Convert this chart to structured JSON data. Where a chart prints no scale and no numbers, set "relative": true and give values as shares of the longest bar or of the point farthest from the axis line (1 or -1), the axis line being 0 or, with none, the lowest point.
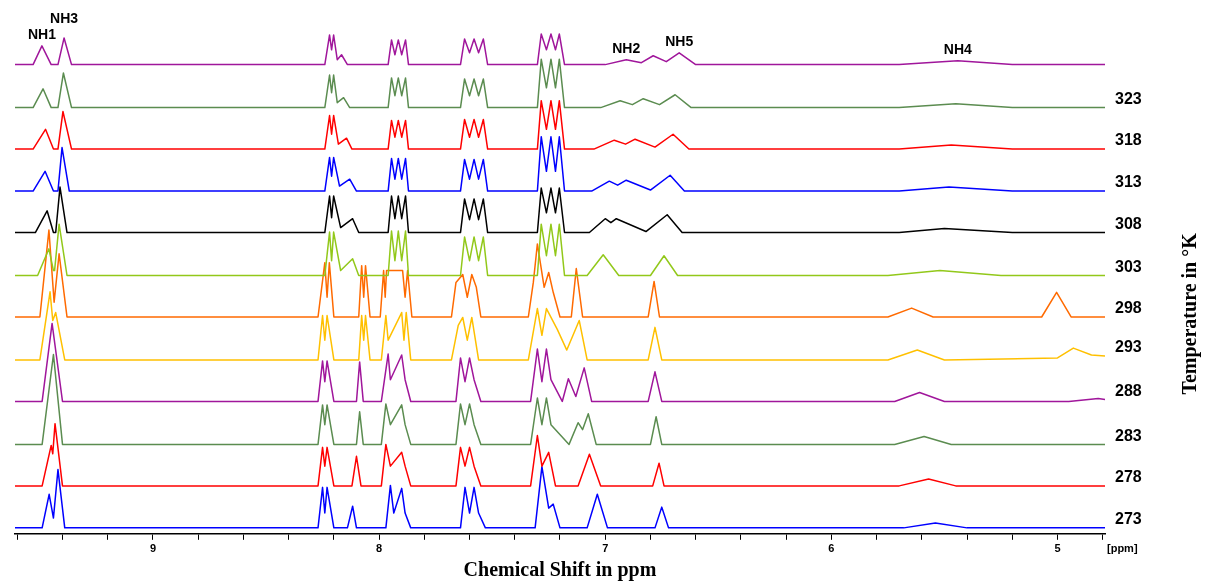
{
  "chart_data": {
    "type": "line",
    "relative": true,
    "marker": "none",
    "xlabel": "Chemical Shift in ppm",
    "ylabel": "Temperature in °K",
    "xlim": [
      9.61,
      4.79
    ],
    "xticks": [
      {
        "value": 9.6,
        "label": null
      },
      {
        "value": 9.4,
        "label": null
      },
      {
        "value": 9.2,
        "label": null
      },
      9,
      {
        "value": 8.8,
        "label": null
      },
      {
        "value": 8.6,
        "label": null
      },
      {
        "value": 8.4,
        "label": null
      },
      {
        "value": 8.2,
        "label": null
      },
      8,
      {
        "value": 7.8,
        "label": null
      },
      {
        "value": 7.6,
        "label": null
      },
      {
        "value": 7.4,
        "label": null
      },
      {
        "value": 7.2,
        "label": null
      },
      7,
      {
        "value": 6.8,
        "label": null
      },
      {
        "value": 6.6,
        "label": null
      },
      {
        "value": 6.4,
        "label": null
      },
      {
        "value": 6.2,
        "label": null
      },
      6,
      {
        "value": 5.8,
        "label": null
      },
      {
        "value": 5.6,
        "label": null
      },
      {
        "value": 5.4,
        "label": null
      },
      {
        "value": 5.2,
        "label": null
      },
      5,
      {
        "value": 4.8,
        "label": null
      }
    ],
    "annotations": [
      {
        "text": "NH1",
        "x": 9.491,
        "y": 0.976
      },
      {
        "text": "NH3",
        "x": 9.393,
        "y": 0.992
      },
      {
        "text": "NH2",
        "x": 6.907,
        "y": 0.948
      },
      {
        "text": "NH5",
        "x": 6.673,
        "y": 0.962
      },
      {
        "text": "NH4",
        "x": 5.441,
        "y": 0.946
      },
      "[ppm]"
    ],
    "series": [
      {
        "color": "#a0169b",
        "x": [
          9.61,
          9.53,
          9.491,
          9.45,
          9.42,
          9.393,
          9.36,
          8.24,
          8.219,
          8.21,
          8.201,
          8.185,
          8.166,
          8.14,
          7.96,
          7.945,
          7.93,
          7.915,
          7.9,
          7.883,
          7.87,
          7.64,
          7.622,
          7.6,
          7.58,
          7.56,
          7.539,
          7.52,
          7.3,
          7.283,
          7.26,
          7.24,
          7.22,
          7.203,
          7.18,
          7.0,
          6.907,
          6.84,
          6.788,
          6.73,
          6.673,
          6.6,
          5.7,
          5.441,
          5.2,
          4.79
        ],
        "values": [
          0.938,
          0.938,
          0.976,
          0.938,
          0.938,
          0.992,
          0.938,
          0.938,
          0.998,
          0.968,
          0.998,
          0.948,
          0.958,
          0.938,
          0.938,
          0.988,
          0.958,
          0.988,
          0.958,
          0.988,
          0.938,
          0.938,
          0.99,
          0.962,
          0.99,
          0.962,
          0.99,
          0.938,
          0.938,
          1.0,
          0.968,
          1.0,
          0.968,
          1.0,
          0.938,
          0.938,
          0.948,
          0.942,
          0.956,
          0.944,
          0.962,
          0.938,
          0.938,
          0.946,
          0.938,
          0.938
        ]
      },
      {
        "name": "323",
        "color": "#5b8c50",
        "x": [
          9.61,
          9.53,
          9.486,
          9.45,
          9.42,
          9.396,
          9.36,
          8.24,
          8.219,
          8.21,
          8.201,
          8.185,
          8.157,
          8.13,
          7.96,
          7.945,
          7.93,
          7.915,
          7.9,
          7.883,
          7.87,
          7.64,
          7.622,
          7.6,
          7.58,
          7.56,
          7.539,
          7.52,
          7.3,
          7.283,
          7.26,
          7.24,
          7.22,
          7.203,
          7.18,
          7.02,
          6.934,
          6.88,
          6.832,
          6.76,
          6.691,
          6.62,
          5.7,
          5.45,
          5.2,
          4.79
        ],
        "values": [
          0.851,
          0.851,
          0.889,
          0.851,
          0.851,
          0.921,
          0.851,
          0.851,
          0.917,
          0.881,
          0.917,
          0.861,
          0.871,
          0.851,
          0.851,
          0.911,
          0.875,
          0.911,
          0.875,
          0.911,
          0.851,
          0.851,
          0.909,
          0.875,
          0.909,
          0.875,
          0.909,
          0.851,
          0.851,
          0.949,
          0.891,
          0.949,
          0.891,
          0.949,
          0.851,
          0.851,
          0.865,
          0.857,
          0.869,
          0.857,
          0.877,
          0.851,
          0.851,
          0.859,
          0.851,
          0.851
        ]
      },
      {
        "name": "318",
        "color": "#ff0000",
        "x": [
          9.61,
          9.53,
          9.475,
          9.44,
          9.42,
          9.398,
          9.36,
          8.24,
          8.219,
          8.21,
          8.201,
          8.18,
          8.144,
          8.12,
          7.96,
          7.945,
          7.93,
          7.915,
          7.9,
          7.883,
          7.87,
          7.64,
          7.622,
          7.6,
          7.58,
          7.56,
          7.539,
          7.52,
          7.3,
          7.283,
          7.26,
          7.24,
          7.22,
          7.203,
          7.18,
          7.05,
          6.96,
          6.91,
          6.868,
          6.78,
          6.7,
          6.63,
          5.7,
          5.47,
          5.2,
          4.79
        ],
        "values": [
          0.767,
          0.767,
          0.807,
          0.767,
          0.767,
          0.843,
          0.767,
          0.767,
          0.835,
          0.797,
          0.835,
          0.777,
          0.789,
          0.767,
          0.767,
          0.825,
          0.791,
          0.825,
          0.791,
          0.825,
          0.767,
          0.767,
          0.827,
          0.791,
          0.827,
          0.791,
          0.827,
          0.767,
          0.767,
          0.865,
          0.807,
          0.865,
          0.807,
          0.865,
          0.767,
          0.767,
          0.785,
          0.777,
          0.787,
          0.771,
          0.797,
          0.767,
          0.767,
          0.775,
          0.767,
          0.767
        ]
      },
      {
        "name": "313",
        "color": "#0000ff",
        "x": [
          9.61,
          9.53,
          9.477,
          9.44,
          9.42,
          9.402,
          9.37,
          8.24,
          8.219,
          8.21,
          8.201,
          8.175,
          8.13,
          8.1,
          7.96,
          7.945,
          7.93,
          7.915,
          7.9,
          7.883,
          7.87,
          7.64,
          7.622,
          7.6,
          7.58,
          7.56,
          7.539,
          7.52,
          7.3,
          7.283,
          7.26,
          7.24,
          7.22,
          7.203,
          7.18,
          7.06,
          6.982,
          6.945,
          6.907,
          6.8,
          6.713,
          6.65,
          5.7,
          5.48,
          5.2,
          4.79
        ],
        "values": [
          0.682,
          0.682,
          0.722,
          0.682,
          0.682,
          0.77,
          0.682,
          0.682,
          0.75,
          0.712,
          0.75,
          0.692,
          0.706,
          0.682,
          0.682,
          0.748,
          0.706,
          0.748,
          0.706,
          0.748,
          0.682,
          0.682,
          0.746,
          0.706,
          0.746,
          0.706,
          0.746,
          0.682,
          0.682,
          0.792,
          0.722,
          0.792,
          0.722,
          0.792,
          0.682,
          0.682,
          0.702,
          0.694,
          0.704,
          0.684,
          0.714,
          0.682,
          0.682,
          0.69,
          0.682,
          0.682
        ]
      },
      {
        "name": "308",
        "color": "#000000",
        "x": [
          9.61,
          9.52,
          9.468,
          9.44,
          9.43,
          9.411,
          9.38,
          8.24,
          8.219,
          8.21,
          8.201,
          8.17,
          8.117,
          8.09,
          7.96,
          7.945,
          7.93,
          7.915,
          7.9,
          7.883,
          7.87,
          7.64,
          7.622,
          7.6,
          7.58,
          7.56,
          7.539,
          7.52,
          7.3,
          7.283,
          7.26,
          7.24,
          7.22,
          7.203,
          7.18,
          7.07,
          7.0,
          6.975,
          6.951,
          6.82,
          6.726,
          6.66,
          5.7,
          5.5,
          5.2,
          4.79
        ],
        "values": [
          0.598,
          0.598,
          0.642,
          0.598,
          0.598,
          0.69,
          0.598,
          0.598,
          0.672,
          0.628,
          0.672,
          0.608,
          0.626,
          0.598,
          0.598,
          0.672,
          0.626,
          0.672,
          0.626,
          0.672,
          0.598,
          0.598,
          0.666,
          0.624,
          0.666,
          0.624,
          0.666,
          0.598,
          0.598,
          0.688,
          0.638,
          0.688,
          0.638,
          0.688,
          0.598,
          0.598,
          0.626,
          0.618,
          0.626,
          0.6,
          0.634,
          0.598,
          0.598,
          0.606,
          0.598,
          0.598
        ]
      },
      {
        "name": "303",
        "color": "#92c81a",
        "x": [
          9.61,
          9.51,
          9.46,
          9.44,
          9.435,
          9.415,
          9.38,
          8.24,
          8.219,
          8.21,
          8.201,
          8.17,
          8.117,
          8.09,
          7.96,
          7.945,
          7.93,
          7.915,
          7.9,
          7.883,
          7.87,
          7.64,
          7.622,
          7.6,
          7.58,
          7.56,
          7.539,
          7.52,
          7.3,
          7.283,
          7.26,
          7.24,
          7.22,
          7.203,
          7.18,
          7.08,
          7.009,
          6.94,
          6.8,
          6.74,
          6.68,
          5.75,
          5.52,
          5.25,
          4.79
        ],
        "values": [
          0.511,
          0.511,
          0.565,
          0.521,
          0.521,
          0.615,
          0.511,
          0.511,
          0.599,
          0.541,
          0.599,
          0.521,
          0.545,
          0.511,
          0.511,
          0.601,
          0.541,
          0.601,
          0.541,
          0.601,
          0.511,
          0.511,
          0.589,
          0.541,
          0.589,
          0.541,
          0.589,
          0.511,
          0.511,
          0.615,
          0.551,
          0.615,
          0.551,
          0.615,
          0.511,
          0.511,
          0.553,
          0.511,
          0.511,
          0.551,
          0.511,
          0.511,
          0.521,
          0.511,
          0.511
        ]
      },
      {
        "name": "298",
        "color": "#ff6a00",
        "x": [
          9.61,
          9.5,
          9.46,
          9.437,
          9.415,
          9.38,
          8.27,
          8.24,
          8.23,
          8.22,
          8.2,
          8.09,
          8.077,
          8.068,
          8.06,
          8.04,
          7.995,
          7.98,
          7.973,
          7.967,
          7.896,
          7.885,
          7.874,
          7.855,
          7.68,
          7.66,
          7.63,
          7.61,
          7.59,
          7.57,
          7.55,
          7.34,
          7.318,
          7.3,
          7.27,
          7.25,
          7.23,
          7.2,
          7.15,
          7.128,
          7.1,
          6.81,
          6.784,
          6.76,
          5.75,
          5.645,
          5.55,
          5.07,
          5.004,
          4.94,
          4.79
        ],
        "values": [
          0.427,
          0.427,
          0.603,
          0.457,
          0.555,
          0.427,
          0.427,
          0.537,
          0.467,
          0.537,
          0.427,
          0.427,
          0.531,
          0.467,
          0.531,
          0.427,
          0.427,
          0.521,
          0.467,
          0.521,
          0.521,
          0.467,
          0.521,
          0.427,
          0.427,
          0.497,
          0.513,
          0.467,
          0.513,
          0.487,
          0.427,
          0.427,
          0.497,
          0.575,
          0.487,
          0.517,
          0.477,
          0.427,
          0.427,
          0.525,
          0.427,
          0.427,
          0.499,
          0.427,
          0.427,
          0.445,
          0.427,
          0.427,
          0.477,
          0.427,
          0.427
        ]
      },
      {
        "name": "293",
        "color": "#ffc000",
        "x": [
          9.61,
          9.5,
          9.455,
          9.443,
          9.43,
          9.39,
          8.27,
          8.25,
          8.24,
          8.23,
          8.2,
          8.09,
          8.077,
          8.068,
          8.06,
          8.04,
          7.99,
          7.97,
          7.96,
          7.9,
          7.89,
          7.88,
          7.86,
          7.68,
          7.65,
          7.63,
          7.61,
          7.59,
          7.56,
          7.34,
          7.3,
          7.28,
          7.26,
          7.212,
          7.17,
          7.115,
          7.08,
          6.81,
          6.78,
          6.75,
          5.75,
          5.62,
          5.5,
          5.0,
          4.93,
          4.85,
          4.79
        ],
        "values": [
          0.34,
          0.34,
          0.478,
          0.42,
          0.436,
          0.34,
          0.34,
          0.43,
          0.38,
          0.43,
          0.34,
          0.34,
          0.43,
          0.38,
          0.43,
          0.34,
          0.34,
          0.43,
          0.38,
          0.436,
          0.38,
          0.436,
          0.34,
          0.34,
          0.41,
          0.426,
          0.38,
          0.426,
          0.34,
          0.34,
          0.444,
          0.39,
          0.444,
          0.402,
          0.36,
          0.42,
          0.34,
          0.34,
          0.406,
          0.34,
          0.34,
          0.36,
          0.34,
          0.344,
          0.364,
          0.35,
          0.348
        ]
      },
      {
        "name": "288",
        "color": "#a0169b",
        "x": [
          9.61,
          9.49,
          9.446,
          9.4,
          8.27,
          8.25,
          8.24,
          8.23,
          8.2,
          8.1,
          8.086,
          8.07,
          7.99,
          7.96,
          7.95,
          7.9,
          7.885,
          7.86,
          7.66,
          7.64,
          7.62,
          7.6,
          7.58,
          7.55,
          7.33,
          7.3,
          7.28,
          7.26,
          7.24,
          7.19,
          7.163,
          7.13,
          7.093,
          7.06,
          6.81,
          6.78,
          6.75,
          5.72,
          5.61,
          5.5,
          4.95,
          4.82,
          4.79
        ],
        "values": [
          0.256,
          0.256,
          0.414,
          0.256,
          0.256,
          0.338,
          0.296,
          0.338,
          0.256,
          0.256,
          0.336,
          0.256,
          0.256,
          0.352,
          0.3,
          0.35,
          0.3,
          0.256,
          0.256,
          0.344,
          0.296,
          0.344,
          0.3,
          0.256,
          0.256,
          0.362,
          0.296,
          0.362,
          0.3,
          0.256,
          0.302,
          0.266,
          0.324,
          0.256,
          0.256,
          0.316,
          0.256,
          0.256,
          0.274,
          0.256,
          0.256,
          0.262,
          0.26
        ]
      },
      {
        "name": "283",
        "color": "#5b8c50",
        "x": [
          9.61,
          9.49,
          9.44,
          9.4,
          8.27,
          8.25,
          8.24,
          8.23,
          8.2,
          8.1,
          8.086,
          8.07,
          7.99,
          7.97,
          7.95,
          7.9,
          7.885,
          7.86,
          7.66,
          7.64,
          7.62,
          7.6,
          7.58,
          7.55,
          7.33,
          7.3,
          7.28,
          7.26,
          7.24,
          7.16,
          7.12,
          7.1,
          7.075,
          7.04,
          6.8,
          6.775,
          6.75,
          5.72,
          5.59,
          5.47,
          4.79
        ],
        "values": [
          0.169,
          0.169,
          0.351,
          0.169,
          0.169,
          0.249,
          0.209,
          0.249,
          0.169,
          0.169,
          0.235,
          0.169,
          0.169,
          0.251,
          0.209,
          0.249,
          0.209,
          0.169,
          0.169,
          0.251,
          0.209,
          0.251,
          0.209,
          0.169,
          0.169,
          0.263,
          0.209,
          0.263,
          0.209,
          0.169,
          0.213,
          0.199,
          0.231,
          0.169,
          0.169,
          0.225,
          0.169,
          0.169,
          0.185,
          0.169,
          0.169
        ]
      },
      {
        "name": "278",
        "color": "#ff0000",
        "x": [
          9.61,
          9.49,
          9.45,
          9.443,
          9.433,
          9.4,
          8.27,
          8.25,
          8.24,
          8.23,
          8.2,
          8.12,
          8.1,
          8.08,
          7.99,
          7.97,
          7.95,
          7.9,
          7.885,
          7.86,
          7.66,
          7.64,
          7.62,
          7.6,
          7.58,
          7.55,
          7.33,
          7.3,
          7.28,
          7.25,
          7.22,
          7.12,
          7.07,
          7.02,
          6.79,
          6.762,
          6.74,
          5.7,
          5.57,
          5.45,
          4.79
        ],
        "values": [
          0.085,
          0.085,
          0.167,
          0.15,
          0.211,
          0.085,
          0.085,
          0.163,
          0.125,
          0.163,
          0.085,
          0.085,
          0.145,
          0.085,
          0.085,
          0.169,
          0.125,
          0.153,
          0.125,
          0.085,
          0.085,
          0.163,
          0.125,
          0.163,
          0.125,
          0.085,
          0.085,
          0.187,
          0.125,
          0.153,
          0.085,
          0.085,
          0.149,
          0.085,
          0.085,
          0.131,
          0.085,
          0.085,
          0.099,
          0.085,
          0.085
        ]
      },
      {
        "name": "273",
        "color": "#0000ff",
        "x": [
          9.61,
          9.49,
          9.459,
          9.44,
          9.42,
          9.39,
          8.27,
          8.25,
          8.24,
          8.23,
          8.2,
          8.14,
          8.117,
          8.1,
          7.97,
          7.95,
          7.935,
          7.9,
          7.885,
          7.86,
          7.64,
          7.62,
          7.6,
          7.58,
          7.56,
          7.53,
          7.31,
          7.28,
          7.25,
          7.23,
          7.2,
          7.08,
          7.035,
          6.99,
          6.78,
          6.75,
          6.72,
          5.68,
          5.54,
          5.4,
          4.79
        ],
        "values": [
          0,
          0,
          0.068,
          0.02,
          0.118,
          0,
          0,
          0.082,
          0.03,
          0.082,
          0,
          0,
          0.044,
          0,
          0,
          0.086,
          0.03,
          0.08,
          0.03,
          0,
          0,
          0.082,
          0.03,
          0.082,
          0.03,
          0,
          0,
          0.124,
          0.04,
          0.048,
          0,
          0,
          0.068,
          0,
          0,
          0.042,
          0,
          0,
          0.01,
          0,
          0
        ]
      }
    ]
  }
}
